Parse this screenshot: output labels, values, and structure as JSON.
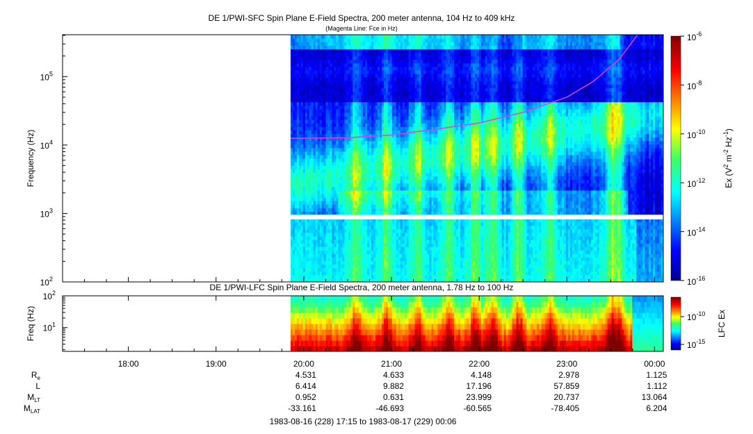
{
  "chart_data": [
    {
      "type": "heatmap",
      "title": "DE 1/PWI-SFC  Spin Plane E-Field Spectra, 200 meter antenna, 104 Hz to 409 kHz",
      "subtitle": "(Magenta Line: Fce in Hz)",
      "ylabel": "Frequency (Hz)",
      "yscale": "log",
      "ylim": [
        100,
        409000
      ],
      "yticks": [
        {
          "base": "10",
          "exp": "2",
          "value": 100
        },
        {
          "base": "10",
          "exp": "3",
          "value": 1000
        },
        {
          "base": "10",
          "exp": "4",
          "value": 10000
        },
        {
          "base": "10",
          "exp": "5",
          "value": 100000
        }
      ],
      "colorbar": {
        "label_parts": [
          "Ex (V",
          "2",
          " m",
          "-2",
          " Hz",
          "-1",
          ")"
        ],
        "scale": "log",
        "range": [
          1e-16,
          1e-06
        ],
        "ticks": [
          {
            "base": "10",
            "exp": "-6",
            "value": 1e-06
          },
          {
            "base": "10",
            "exp": "-8",
            "value": 1e-08
          },
          {
            "base": "10",
            "exp": "-10",
            "value": 1e-10
          },
          {
            "base": "10",
            "exp": "-12",
            "value": 1e-12
          },
          {
            "base": "10",
            "exp": "-14",
            "value": 1e-14
          },
          {
            "base": "10",
            "exp": "-16",
            "value": 1e-16
          }
        ]
      },
      "data_start_hours": 19.85,
      "gap_frequency_hz": [
        820,
        960
      ],
      "fce_line": {
        "color": "#e040e0",
        "x_hours": [
          19.85,
          20.5,
          21.0,
          21.5,
          22.0,
          22.5,
          23.0,
          23.3,
          23.6,
          23.8
        ],
        "y_hz": [
          12500,
          12800,
          14000,
          17000,
          21000,
          30000,
          50000,
          85000,
          180000,
          400000
        ]
      }
    },
    {
      "type": "heatmap",
      "title": "DE 1/PWI-LFC  Spin Plane E-Field Spectra, 200 meter antenna, 1.78 Hz to 100 Hz",
      "ylabel": "Freq (Hz)",
      "yscale": "log",
      "ylim": [
        1.78,
        100
      ],
      "yticks": [
        {
          "base": "10",
          "exp": "1",
          "value": 10
        },
        {
          "base": "10",
          "exp": "2",
          "value": 100
        }
      ],
      "colorbar": {
        "label": "LFC Ex",
        "scale": "log",
        "ticks": [
          {
            "base": "10",
            "exp": "-10",
            "value": 1e-10
          },
          {
            "base": "10",
            "exp": "-15",
            "value": 1e-15
          }
        ]
      },
      "data_start_hours": 19.85
    }
  ],
  "xaxis": {
    "range_hours": [
      17.25,
      24.1
    ],
    "ticks": [
      {
        "label": "18:00",
        "hours": 18
      },
      {
        "label": "19:00",
        "hours": 19
      },
      {
        "label": "20:00",
        "hours": 20
      },
      {
        "label": "21:00",
        "hours": 21
      },
      {
        "label": "22:00",
        "hours": 22
      },
      {
        "label": "23:00",
        "hours": 23
      },
      {
        "label": "00:00",
        "hours": 24
      }
    ],
    "time_range_label": "1983-08-16 (228) 17:15 to 1983-08-17 (229) 00:06"
  },
  "ephemeris": {
    "tick_hours": [
      20,
      21,
      22,
      23,
      24
    ],
    "rows": [
      {
        "label": "R",
        "sub": "e",
        "values": [
          "4.531",
          "4.633",
          "4.148",
          "2.978",
          "1.125"
        ]
      },
      {
        "label": "L",
        "sub": "",
        "values": [
          "6.414",
          "9.882",
          "17.196",
          "57.859",
          "1.112"
        ]
      },
      {
        "label": "M",
        "sub": "LT",
        "values": [
          "0.952",
          "0.631",
          "23.999",
          "20.737",
          "13.064"
        ]
      },
      {
        "label": "M",
        "sub": "LAT",
        "values": [
          "-33.161",
          "-46.693",
          "-60.565",
          "-78.405",
          "6.204"
        ]
      }
    ]
  }
}
